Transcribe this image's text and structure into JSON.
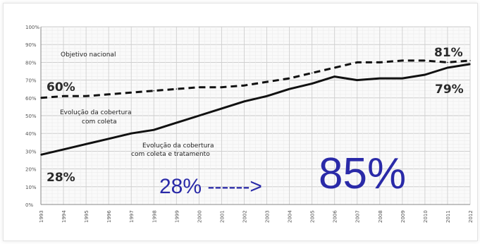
{
  "chart_data": {
    "type": "line",
    "x": [
      "1993",
      "1994",
      "1995",
      "1996",
      "1997",
      "1998",
      "1999",
      "2000",
      "2001",
      "2002",
      "2003",
      "2004",
      "2005",
      "2006",
      "2007",
      "2008",
      "2009",
      "2010",
      "2011",
      "2012"
    ],
    "ylim": [
      0,
      100
    ],
    "yticks": [
      "0%",
      "10%",
      "20%",
      "30%",
      "40%",
      "50%",
      "60%",
      "70%",
      "80%",
      "90%",
      "100%"
    ],
    "grid": true,
    "series": [
      {
        "name": "Evolução da cobertura com coleta",
        "style": "dashed",
        "color": "#111111",
        "values": [
          60,
          61,
          61,
          62,
          63,
          64,
          65,
          66,
          66,
          67,
          69,
          71,
          74,
          77,
          80,
          80,
          81,
          81,
          80,
          81
        ]
      },
      {
        "name": "Evolução da cobertura com coleta e tratamento",
        "style": "solid",
        "color": "#111111",
        "values": [
          28,
          31,
          34,
          37,
          40,
          42,
          46,
          50,
          54,
          58,
          61,
          65,
          68,
          72,
          70,
          71,
          71,
          73,
          77,
          79
        ]
      }
    ],
    "annotations": {
      "objetivo": "Objetivo nacional",
      "label_60": "60%",
      "label_81": "81%",
      "label_79": "79%",
      "label_28": "28%",
      "cobertura_coleta_1": "Evolução da cobertura",
      "cobertura_coleta_2": "com coleta",
      "cobertura_trat_1": "Evolução da cobertura",
      "cobertura_trat_2": "com coleta e tratamento",
      "overlay_from": "28% ------>",
      "overlay_to": "85%"
    },
    "colors": {
      "overlay": "#2a2aa8",
      "line": "#111111",
      "grid": "#d9d9d9"
    }
  }
}
